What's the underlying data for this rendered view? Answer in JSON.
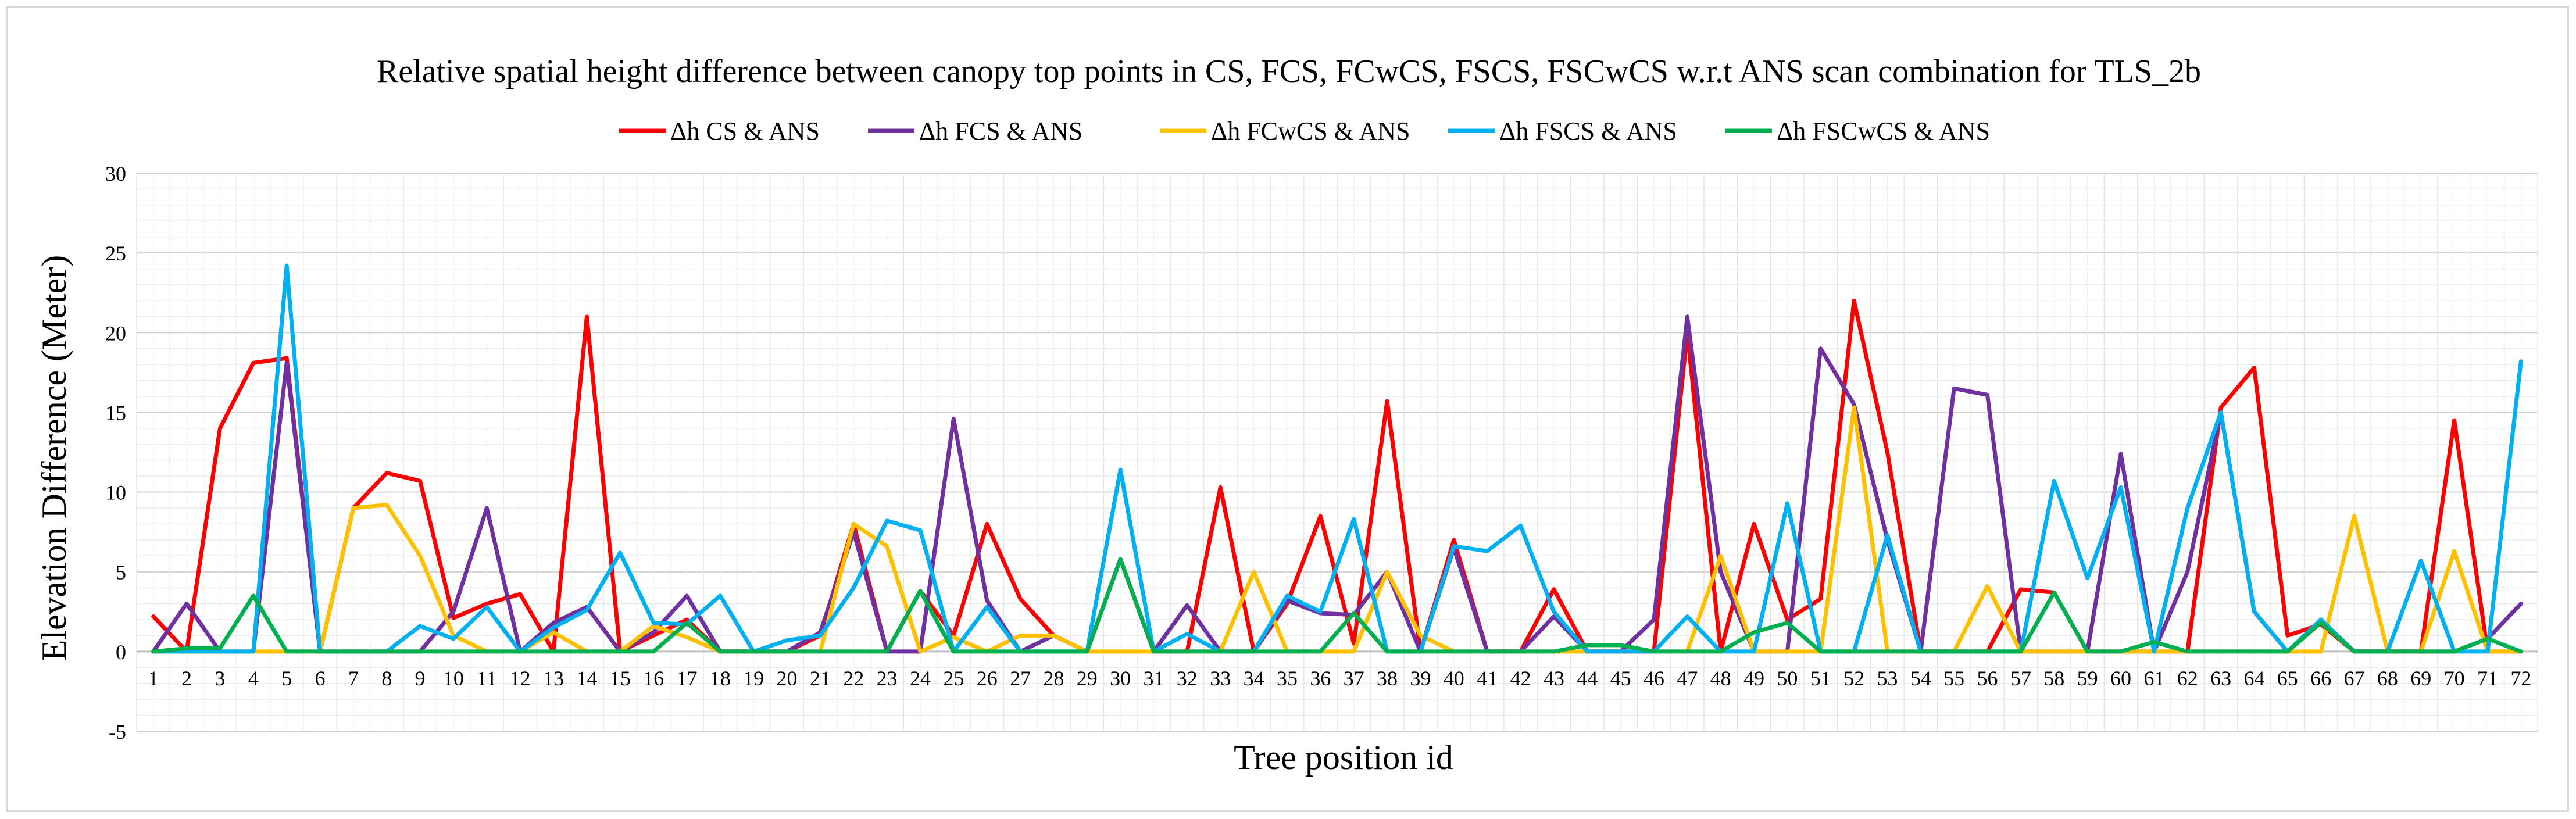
{
  "chart_data": {
    "type": "line",
    "title": "Relative spatial height difference between canopy top points in CS, FCS, FCwCS, FSCS, FSCwCS w.r.t ANS scan combination for TLS_2b",
    "xlabel": "Tree position id",
    "ylabel": "Elevation Difference (Meter)",
    "ylim": [
      -5,
      30
    ],
    "yticks": [
      -5,
      0,
      5,
      10,
      15,
      20,
      25,
      30
    ],
    "grid": true,
    "legend_position": "top",
    "categories": [
      "1",
      "2",
      "3",
      "4",
      "5",
      "6",
      "7",
      "8",
      "9",
      "10",
      "11",
      "12",
      "13",
      "14",
      "15",
      "16",
      "17",
      "18",
      "19",
      "20",
      "21",
      "22",
      "23",
      "24",
      "25",
      "26",
      "27",
      "28",
      "29",
      "30",
      "31",
      "32",
      "33",
      "34",
      "35",
      "36",
      "37",
      "38",
      "39",
      "40",
      "41",
      "42",
      "43",
      "44",
      "45",
      "46",
      "47",
      "48",
      "49",
      "50",
      "51",
      "52",
      "53",
      "54",
      "55",
      "56",
      "57",
      "58",
      "59",
      "60",
      "61",
      "62",
      "63",
      "64",
      "65",
      "66",
      "67",
      "68",
      "69",
      "70",
      "71",
      "72"
    ],
    "series": [
      {
        "name": "Δh CS & ANS",
        "color": "#ff0000",
        "values": [
          2.2,
          0,
          14,
          18.1,
          18.4,
          0,
          9,
          11.2,
          10.7,
          2.1,
          3,
          3.6,
          0,
          21,
          0,
          1,
          2,
          0,
          0,
          0,
          1,
          8,
          0,
          3.8,
          1,
          8,
          3.3,
          1,
          0,
          5.8,
          0,
          0,
          10.3,
          0,
          3,
          8.5,
          0.5,
          15.7,
          0,
          7,
          0,
          0,
          3.9,
          0,
          0,
          0,
          20,
          0,
          8,
          2,
          3.3,
          22,
          12.5,
          0,
          0,
          0,
          3.9,
          3.7,
          0,
          0,
          0,
          0,
          15.3,
          17.8,
          1,
          1.7,
          0,
          0,
          0,
          14.5,
          0,
          0
        ]
      },
      {
        "name": "Δh FCS & ANS",
        "color": "#7030a0",
        "values": [
          0,
          3,
          0,
          0,
          18.1,
          0,
          0,
          0,
          0,
          2.5,
          9,
          0,
          1.8,
          2.8,
          0,
          1.2,
          3.5,
          0,
          0,
          0,
          1.2,
          7.5,
          0,
          0,
          14.6,
          3.2,
          0,
          1,
          0,
          5.8,
          0,
          2.9,
          0,
          0,
          3.2,
          2.4,
          2.3,
          5,
          0,
          6.5,
          0,
          0,
          2.2,
          0,
          0,
          2,
          21,
          5,
          0,
          0,
          19,
          15.5,
          7,
          0,
          16.5,
          16.1,
          0,
          0,
          0,
          12.4,
          0,
          5,
          15,
          2.5,
          0,
          2,
          0,
          0,
          0,
          0,
          0.8,
          3
        ]
      },
      {
        "name": "Δh FCwCS & ANS",
        "color": "#ffc000",
        "values": [
          0,
          0,
          0,
          0,
          0,
          0,
          9,
          9.2,
          6,
          1,
          0,
          0,
          1.2,
          0,
          0,
          1.6,
          0.9,
          0,
          0,
          0,
          0,
          8,
          6.6,
          0,
          0.9,
          0,
          1,
          1,
          0,
          0,
          0,
          0,
          0,
          5,
          0,
          0,
          0,
          5,
          1,
          0,
          0,
          0,
          0,
          0,
          0,
          0,
          0,
          6,
          0,
          0,
          0,
          15.3,
          0,
          0,
          0,
          4.1,
          0,
          0,
          0,
          0,
          0,
          0,
          0,
          0,
          0,
          0,
          8.5,
          0,
          0,
          6.3,
          0,
          0
        ]
      },
      {
        "name": "Δh FSCS & ANS",
        "color": "#00b0f0",
        "values": [
          0,
          0,
          0,
          0,
          24.2,
          0,
          0,
          0,
          1.6,
          0.8,
          2.8,
          0,
          1.5,
          2.6,
          6.2,
          1.8,
          1.7,
          3.5,
          0,
          0.7,
          1,
          4,
          8.2,
          7.6,
          0,
          2.8,
          0,
          0,
          0,
          11.4,
          0,
          1.1,
          0,
          0,
          3.5,
          2.5,
          8.3,
          0,
          0,
          6.6,
          6.3,
          7.9,
          2.5,
          0,
          0,
          0,
          2.2,
          0,
          0,
          9.3,
          0,
          0,
          7.3,
          0,
          0,
          0,
          0,
          10.7,
          4.6,
          10.3,
          0,
          9,
          15,
          2.5,
          0,
          2,
          0,
          0,
          5.7,
          0,
          0,
          18.2
        ]
      },
      {
        "name": "Δh FSCwCS & ANS",
        "color": "#00b050",
        "values": [
          0,
          0.2,
          0.2,
          3.5,
          0,
          0,
          0,
          0,
          0,
          0,
          0,
          0,
          0,
          0,
          0,
          0,
          1.8,
          0,
          0,
          0,
          0,
          0,
          0,
          3.8,
          0,
          0,
          0,
          0,
          0,
          5.8,
          0,
          0,
          0,
          0,
          0,
          0,
          2.4,
          0,
          0,
          0,
          0,
          0,
          0,
          0.4,
          0.4,
          0,
          0,
          0,
          1.2,
          1.8,
          0,
          0,
          0,
          0,
          0,
          0,
          0,
          3.7,
          0,
          0,
          0.6,
          0,
          0,
          0,
          0,
          1.8,
          0,
          0,
          0,
          0,
          0.8,
          0
        ]
      }
    ]
  }
}
